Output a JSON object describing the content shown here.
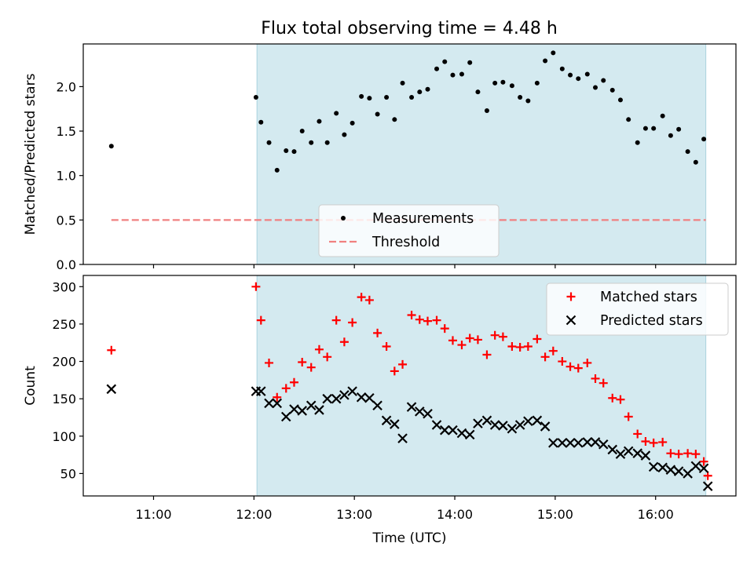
{
  "title": "Flux total observing time = 4.48 h",
  "chart_data": [
    {
      "type": "scatter",
      "ylabel": "Matched/Predicted stars",
      "ylim": [
        0,
        2.48
      ],
      "yticks": [
        "0.0",
        "0.5",
        "1.0",
        "1.5",
        "2.0"
      ],
      "xlim": [
        10.3,
        16.8
      ],
      "shaded_range": [
        12.03,
        16.5
      ],
      "shade_color": "#d4eaf0",
      "legend_position": "lower-center",
      "series": [
        {
          "name": "Measurements",
          "marker": "dot",
          "color": "#000000",
          "x": [
            10.58,
            12.02,
            12.07,
            12.15,
            12.23,
            12.32,
            12.4,
            12.48,
            12.57,
            12.65,
            12.73,
            12.82,
            12.9,
            12.98,
            13.07,
            13.15,
            13.23,
            13.32,
            13.4,
            13.48,
            13.57,
            13.65,
            13.73,
            13.82,
            13.9,
            13.98,
            14.07,
            14.15,
            14.23,
            14.32,
            14.4,
            14.48,
            14.57,
            14.65,
            14.73,
            14.82,
            14.9,
            14.98,
            15.07,
            15.15,
            15.23,
            15.32,
            15.4,
            15.48,
            15.57,
            15.65,
            15.73,
            15.82,
            15.9,
            15.98,
            16.07,
            16.15,
            16.23,
            16.32,
            16.4,
            16.48
          ],
          "y": [
            1.33,
            1.88,
            1.6,
            1.37,
            1.06,
            1.28,
            1.27,
            1.5,
            1.37,
            1.61,
            1.37,
            1.7,
            1.46,
            1.59,
            1.89,
            1.87,
            1.69,
            1.88,
            1.63,
            2.04,
            1.88,
            1.94,
            1.97,
            2.2,
            2.28,
            2.13,
            2.14,
            2.27,
            1.94,
            1.73,
            2.04,
            2.05,
            2.01,
            1.88,
            1.84,
            2.04,
            2.29,
            2.38,
            2.2,
            2.13,
            2.09,
            2.14,
            1.99,
            2.07,
            1.96,
            1.85,
            1.63,
            1.37,
            1.53,
            1.53,
            1.67,
            1.45,
            1.52,
            1.27,
            1.15,
            1.41
          ]
        },
        {
          "name": "Threshold",
          "marker": "dashed-line",
          "color": "#f08080",
          "x": [
            10.58,
            16.5
          ],
          "y": [
            0.5,
            0.5
          ]
        }
      ]
    },
    {
      "type": "scatter",
      "xlabel": "Time (UTC)",
      "ylabel": "Count",
      "ylim": [
        20,
        315
      ],
      "yticks": [
        "50",
        "100",
        "150",
        "200",
        "250",
        "300"
      ],
      "xlim": [
        10.3,
        16.8
      ],
      "xticks": [
        {
          "value": 11,
          "label": "11:00"
        },
        {
          "value": 12,
          "label": "12:00"
        },
        {
          "value": 13,
          "label": "13:00"
        },
        {
          "value": 14,
          "label": "14:00"
        },
        {
          "value": 15,
          "label": "15:00"
        },
        {
          "value": 16,
          "label": "16:00"
        }
      ],
      "shaded_range": [
        12.03,
        16.5
      ],
      "shade_color": "#d4eaf0",
      "legend_position": "upper-right",
      "series": [
        {
          "name": "Matched stars",
          "marker": "plus",
          "color": "#ff0000",
          "x": [
            10.58,
            12.02,
            12.07,
            12.15,
            12.23,
            12.32,
            12.4,
            12.48,
            12.57,
            12.65,
            12.73,
            12.82,
            12.9,
            12.98,
            13.07,
            13.15,
            13.23,
            13.32,
            13.4,
            13.48,
            13.57,
            13.65,
            13.73,
            13.82,
            13.9,
            13.98,
            14.07,
            14.15,
            14.23,
            14.32,
            14.4,
            14.48,
            14.57,
            14.65,
            14.73,
            14.82,
            14.9,
            14.98,
            15.07,
            15.15,
            15.23,
            15.32,
            15.4,
            15.48,
            15.57,
            15.65,
            15.73,
            15.82,
            15.9,
            15.98,
            16.07,
            16.15,
            16.23,
            16.32,
            16.4,
            16.48,
            16.52
          ],
          "y": [
            215,
            300,
            255,
            198,
            152,
            164,
            172,
            199,
            192,
            216,
            206,
            255,
            226,
            252,
            286,
            282,
            238,
            220,
            187,
            196,
            262,
            256,
            254,
            255,
            244,
            228,
            222,
            231,
            229,
            209,
            235,
            233,
            220,
            219,
            220,
            230,
            206,
            214,
            200,
            193,
            191,
            198,
            177,
            171,
            151,
            149,
            126,
            103,
            93,
            91,
            92,
            77,
            76,
            77,
            76,
            66,
            47
          ]
        },
        {
          "name": "Predicted stars",
          "marker": "x",
          "color": "#000000",
          "x": [
            10.58,
            12.02,
            12.07,
            12.15,
            12.23,
            12.32,
            12.4,
            12.48,
            12.57,
            12.65,
            12.73,
            12.82,
            12.9,
            12.98,
            13.07,
            13.15,
            13.23,
            13.32,
            13.4,
            13.48,
            13.57,
            13.65,
            13.73,
            13.82,
            13.9,
            13.98,
            14.07,
            14.15,
            14.23,
            14.32,
            14.4,
            14.48,
            14.57,
            14.65,
            14.73,
            14.82,
            14.9,
            14.98,
            15.07,
            15.15,
            15.23,
            15.32,
            15.4,
            15.48,
            15.57,
            15.65,
            15.73,
            15.82,
            15.9,
            15.98,
            16.07,
            16.15,
            16.23,
            16.32,
            16.4,
            16.48,
            16.52
          ],
          "y": [
            163,
            160,
            160,
            144,
            144,
            126,
            136,
            134,
            141,
            135,
            150,
            150,
            155,
            160,
            152,
            151,
            141,
            121,
            116,
            97,
            139,
            133,
            130,
            115,
            108,
            108,
            104,
            102,
            117,
            121,
            115,
            114,
            110,
            115,
            120,
            121,
            113,
            91,
            91,
            91,
            91,
            92,
            92,
            89,
            82,
            76,
            80,
            77,
            74,
            59,
            58,
            55,
            53,
            50,
            60,
            57,
            33
          ]
        }
      ]
    }
  ]
}
